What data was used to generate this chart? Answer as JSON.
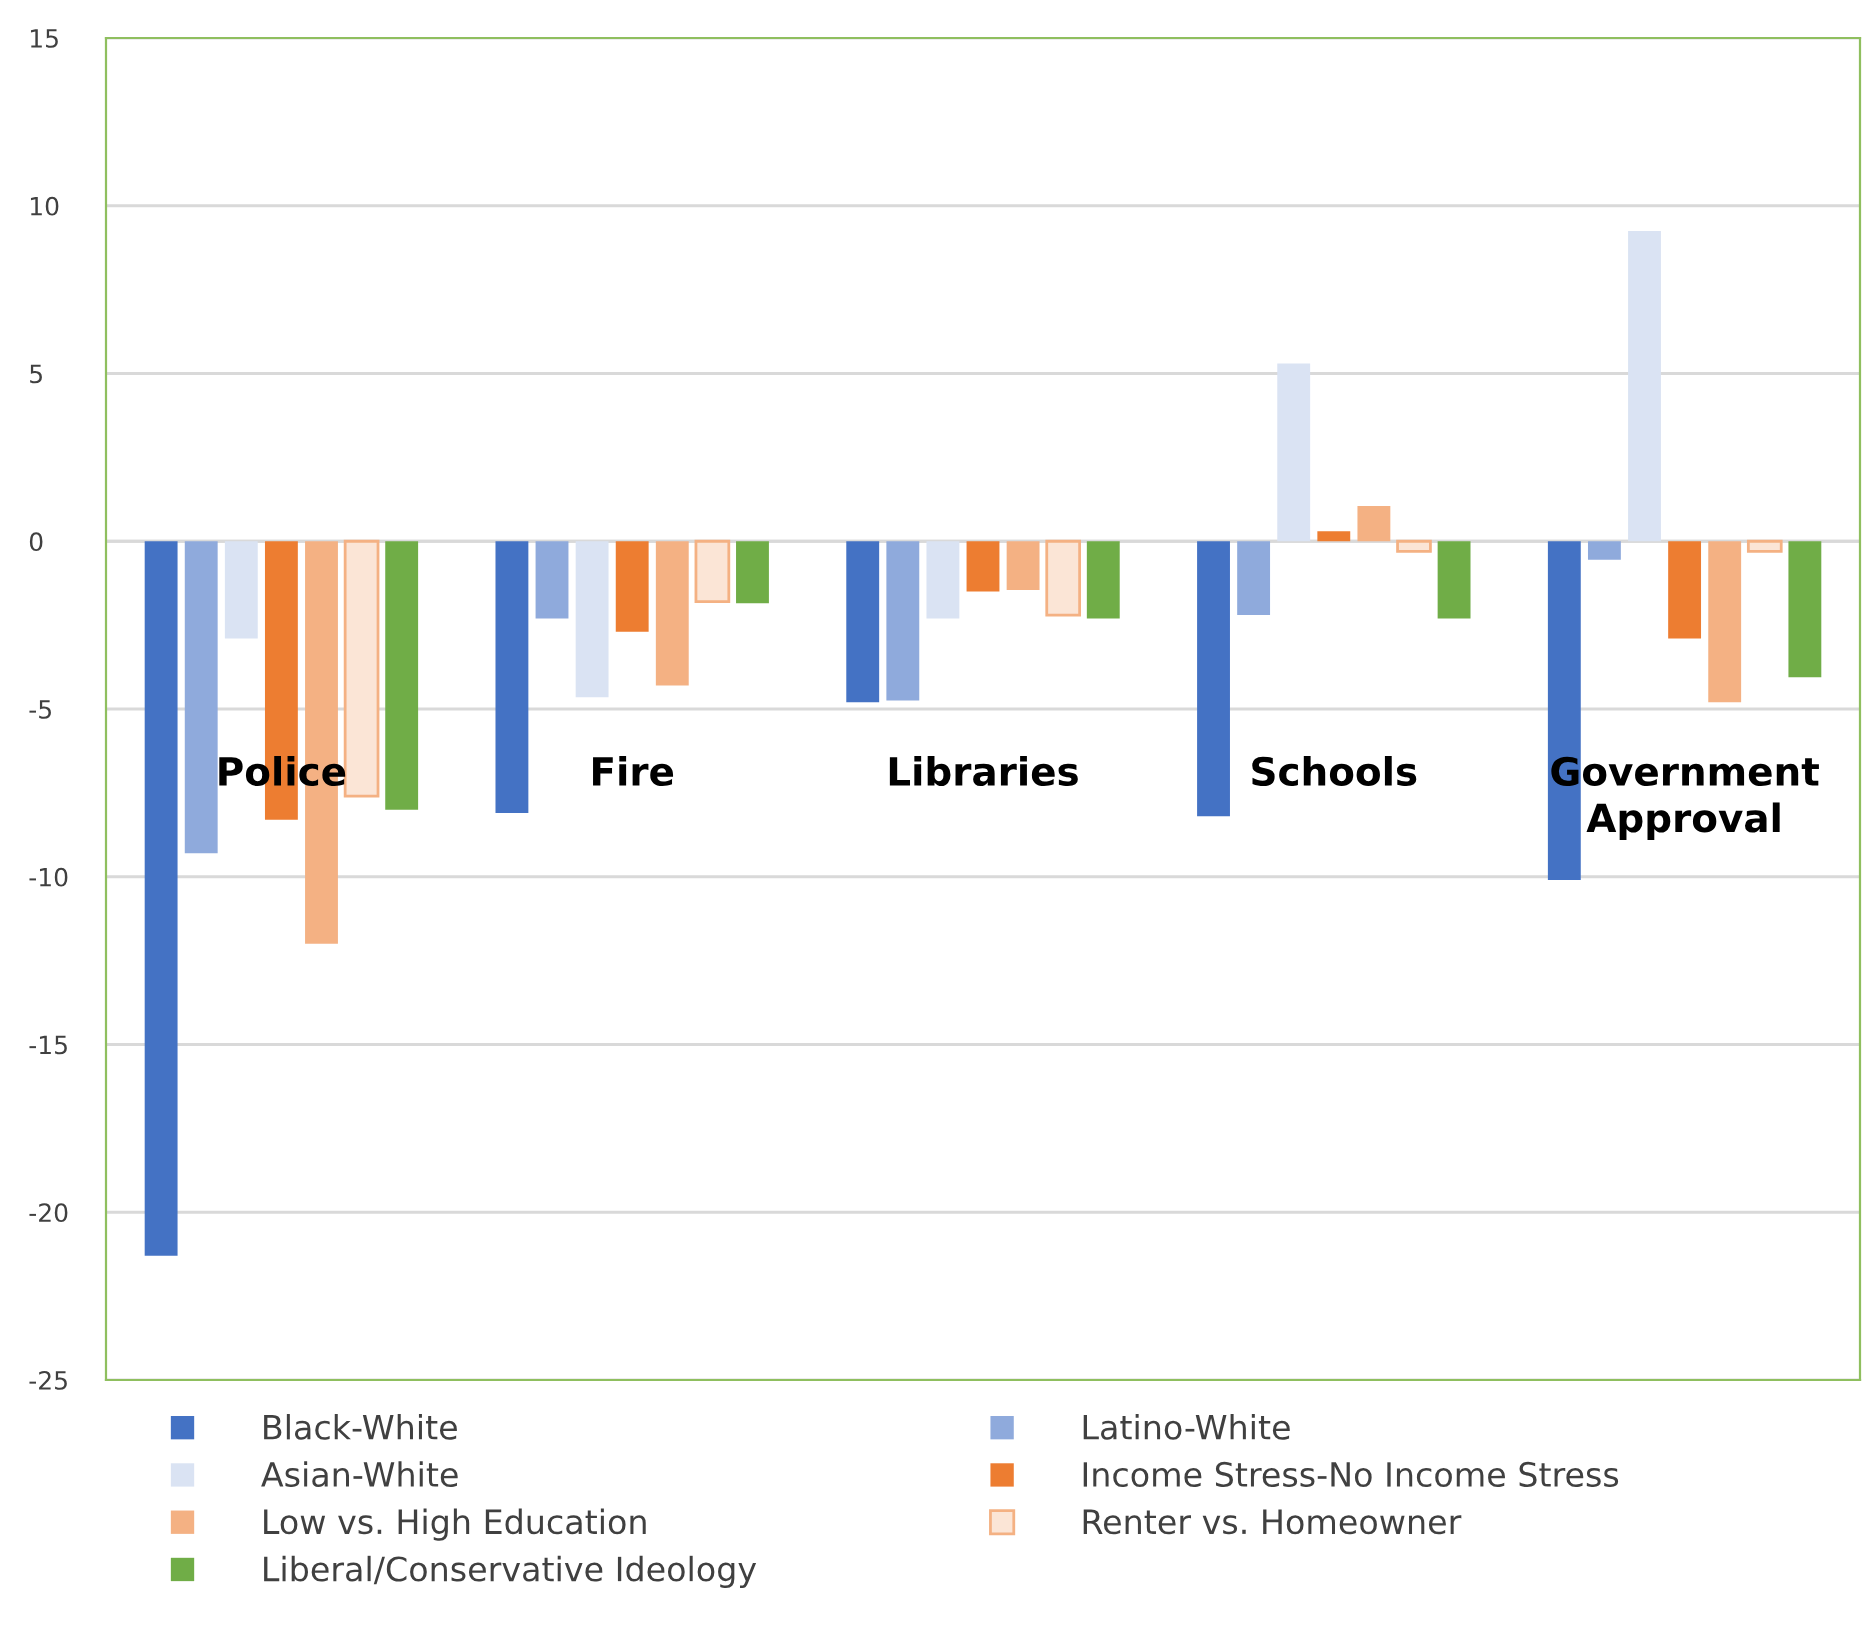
{
  "chart_data": {
    "type": "bar",
    "categories": [
      "Police",
      "Fire",
      "Libraries",
      "Schools",
      "Government\nApproval"
    ],
    "series": [
      {
        "name": "Black-White",
        "color": "#4472c4",
        "values": [
          -21.3,
          -8.1,
          -4.8,
          -8.2,
          -10.1
        ]
      },
      {
        "name": "Latino-White",
        "color": "#8faadc",
        "values": [
          -9.3,
          -2.3,
          -4.75,
          -2.2,
          -0.55
        ]
      },
      {
        "name": "Asian-White",
        "color": "#dae3f3",
        "values": [
          -2.9,
          -4.65,
          -2.3,
          5.3,
          9.25
        ]
      },
      {
        "name": "Income Stress-No Income Stress",
        "color": "#ed7d31",
        "values": [
          -8.3,
          -2.7,
          -1.5,
          0.3,
          -2.9
        ]
      },
      {
        "name": "Low vs. High Education",
        "color": "#f4b183",
        "values": [
          -12.0,
          -4.3,
          -1.45,
          1.05,
          -4.8
        ]
      },
      {
        "name": "Renter vs. Homeowner",
        "color": "#fbe5d6",
        "values": [
          -7.6,
          -1.8,
          -2.2,
          -0.3,
          -0.3
        ]
      },
      {
        "name": "Liberal/Conservative Ideology",
        "color": "#70ad47",
        "values": [
          -8.0,
          -1.85,
          -2.3,
          -2.3,
          -4.05
        ]
      }
    ],
    "ylim": [
      -25,
      15
    ],
    "yticks": [
      -25,
      -20,
      -15,
      -10,
      -5,
      0,
      5,
      10,
      15
    ],
    "grid": "y",
    "legend": "bottom"
  }
}
